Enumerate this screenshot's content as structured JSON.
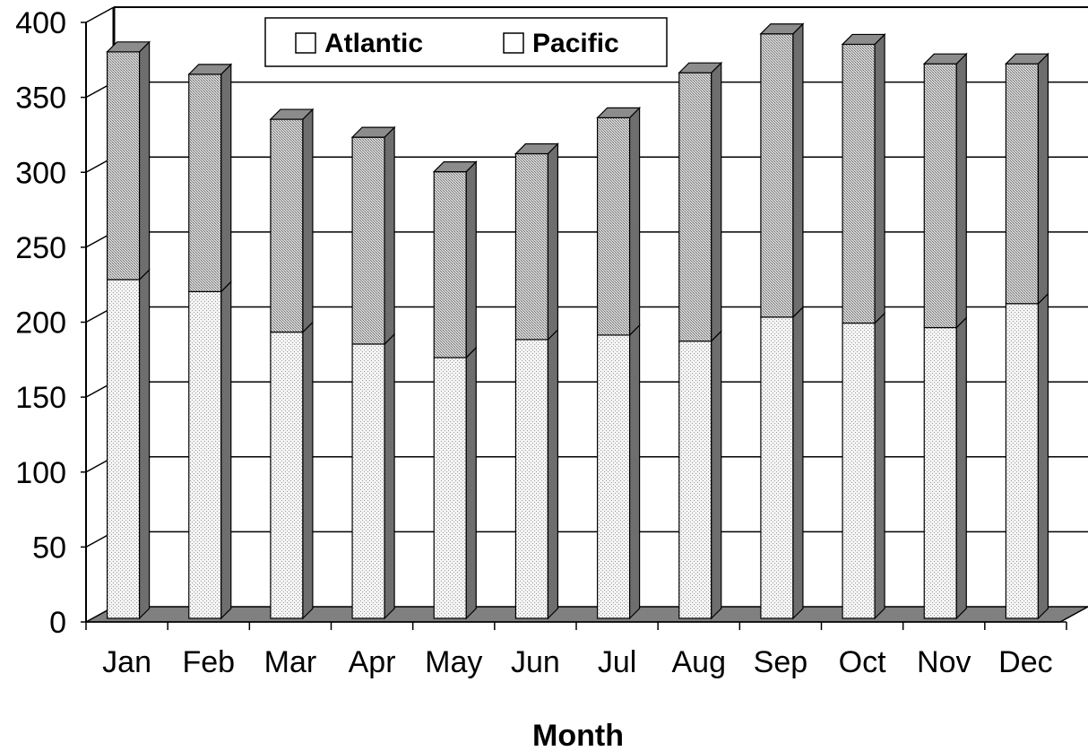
{
  "chart_data": {
    "type": "bar",
    "stacked": true,
    "three_d": true,
    "title": "",
    "xlabel": "Month",
    "ylabel": "",
    "categories": [
      "Jan",
      "Feb",
      "Mar",
      "Apr",
      "May",
      "Jun",
      "Jul",
      "Aug",
      "Sep",
      "Oct",
      "Nov",
      "Dec"
    ],
    "series": [
      {
        "name": "Atlantic",
        "values": [
          226,
          218,
          191,
          183,
          174,
          186,
          189,
          185,
          201,
          197,
          194,
          210
        ],
        "color": "#f0f0f0"
      },
      {
        "name": "Pacific",
        "values": [
          152,
          145,
          142,
          138,
          124,
          124,
          145,
          179,
          189,
          186,
          176,
          160
        ],
        "color": "#c0c0c0"
      }
    ],
    "ylim": [
      0,
      400
    ],
    "yticks": [
      0,
      50,
      100,
      150,
      200,
      250,
      300,
      350,
      400
    ],
    "grid": true,
    "legend": "top-center",
    "floor_color": "#808080"
  }
}
